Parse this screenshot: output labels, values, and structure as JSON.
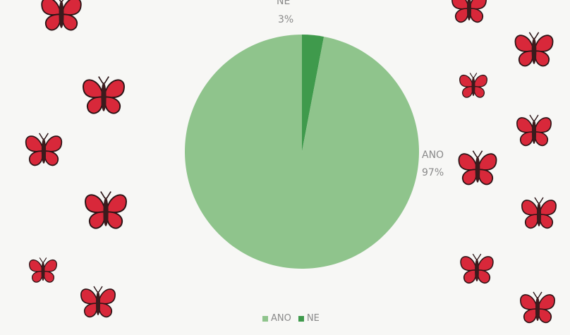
{
  "chart_data": {
    "type": "pie",
    "categories": [
      "ANO",
      "NE"
    ],
    "values": [
      97,
      3
    ],
    "labels": [
      "97%",
      "3%"
    ],
    "colors": [
      "#8fc48c",
      "#3f9a4c"
    ],
    "legend_position": "bottom",
    "title": ""
  },
  "decoration": {
    "butterfly_colors": {
      "wing": "#d8283a",
      "outline": "#2a1416",
      "body": "#3a1b1d"
    },
    "icon_name": "butterfly-icon"
  }
}
